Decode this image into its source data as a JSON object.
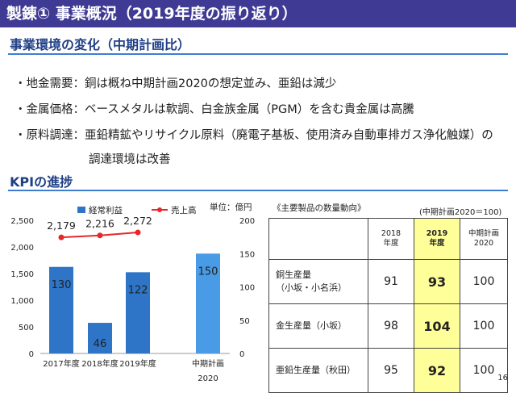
{
  "page_title": "製錬① 事業概況（2019年度の振り返り）",
  "section1": {
    "heading": "事業環境の変化（中期計画比）",
    "bullets": [
      "・地金需要：銅は概ね中期計画2020の想定並み、亜鉛は減少",
      "・金属価格：ベースメタルは軟調、白金族金属（PGM）を含む貴金属は高騰",
      "・原料調達：亜鉛精鉱やリサイクル原料（廃電子基板、使用済み自動車排ガス浄化触媒）の"
    ],
    "bullet_cont": "調達環境は改善"
  },
  "section2": {
    "heading": "KPIの進捗"
  },
  "colors": {
    "title_bg": "#3f3a93",
    "heading": "#1f3f86",
    "bar": "#2e75c8",
    "bar_plan": "#4a9be6",
    "line": "#e8262b",
    "highlight": "#ffff99"
  },
  "chart_data": {
    "type": "bar",
    "categories": [
      "2017年度",
      "2018年度",
      "2019年度",
      "中期計画"
    ],
    "category_sub": [
      "",
      "",
      "",
      "2020"
    ],
    "series": [
      {
        "name": "経常利益",
        "values": [
          130,
          46,
          122,
          150
        ],
        "axis": "right"
      },
      {
        "name": "売上高",
        "type": "line",
        "values": [
          2179,
          2216,
          2272,
          null
        ],
        "labels": [
          "2,179",
          "2,216",
          "2,272",
          ""
        ],
        "axis": "left"
      }
    ],
    "unit": "単位：億円",
    "left_axis": {
      "ylim": [
        0,
        2500
      ],
      "ticks": [
        "0",
        "500",
        "1,000",
        "1,500",
        "2,000",
        "2,500"
      ]
    },
    "right_axis": {
      "ylim": [
        0,
        200
      ],
      "ticks": [
        "0",
        "50",
        "100",
        "150",
        "200"
      ]
    },
    "legend_position": "top"
  },
  "table": {
    "title": "《主要製品の数量動向》",
    "note": "(中期計画2020＝100)",
    "headers": [
      [
        "",
        ""
      ],
      [
        "2018",
        "年度"
      ],
      [
        "2019",
        "年度"
      ],
      [
        "中期計画",
        "2020"
      ]
    ],
    "rows": [
      {
        "label1": "銅生産量",
        "label2": "（小坂・小名浜）",
        "v2018": "91",
        "v2019": "93",
        "plan": "100"
      },
      {
        "label1": "金生産量（小坂）",
        "label2": "",
        "v2018": "98",
        "v2019": "104",
        "plan": "100"
      },
      {
        "label1": "亜鉛生産量（秋田）",
        "label2": "",
        "v2018": "95",
        "v2019": "92",
        "plan": "100"
      }
    ]
  },
  "page_number": "16"
}
